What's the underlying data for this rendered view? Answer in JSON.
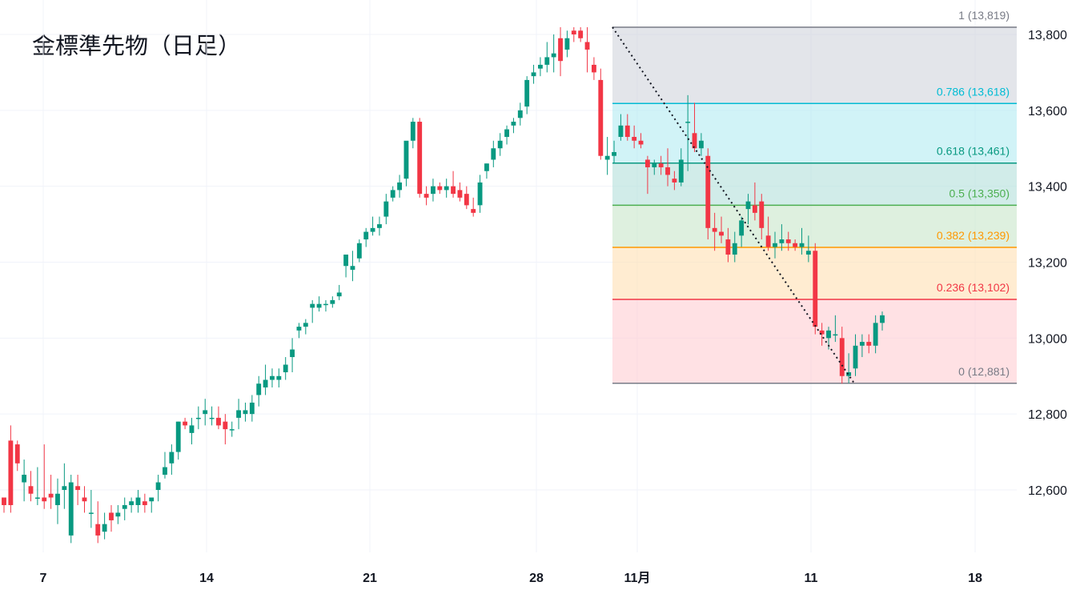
{
  "chart_data": {
    "type": "candlestick",
    "title": "金標準先物（日足）",
    "y_ticks": [
      12600,
      12800,
      13000,
      13200,
      13400,
      13600,
      13800
    ],
    "y_tick_labels": [
      "12,600",
      "12,800",
      "13,000",
      "13,200",
      "13,400",
      "13,600",
      "13,800"
    ],
    "x_ticks": [
      {
        "label": "7",
        "index": 1,
        "bold": true
      },
      {
        "label": "14",
        "index": 6,
        "bold": true
      },
      {
        "label": "21",
        "index": 11,
        "bold": true
      },
      {
        "label": "28",
        "index": 16,
        "bold": true
      },
      {
        "label": "11月",
        "index": 18,
        "bold": true
      },
      {
        "label": "11",
        "index": 23,
        "bold": true
      },
      {
        "label": "18",
        "index": 28,
        "bold": true
      }
    ],
    "candles_ohlc": [
      [
        12580,
        12580,
        12540,
        12560
      ],
      [
        12730,
        12770,
        12540,
        12560
      ],
      [
        12720,
        12730,
        12650,
        12670
      ],
      [
        12620,
        12680,
        12570,
        12640
      ],
      [
        12610,
        12650,
        12570,
        12590
      ],
      [
        12580,
        12660,
        12560,
        12580
      ],
      [
        12580,
        12720,
        12550,
        12570
      ],
      [
        12590,
        12640,
        12550,
        12580
      ],
      [
        12560,
        12630,
        12510,
        12590
      ],
      [
        12600,
        12670,
        12550,
        12610
      ],
      [
        12480,
        12640,
        12460,
        12620
      ],
      [
        12610,
        12640,
        12560,
        12600
      ],
      [
        12580,
        12610,
        12540,
        12570
      ],
      [
        12540,
        12600,
        12500,
        12540
      ],
      [
        12510,
        12570,
        12460,
        12480
      ],
      [
        12490,
        12540,
        12470,
        12510
      ],
      [
        12540,
        12560,
        12490,
        12520
      ],
      [
        12530,
        12560,
        12510,
        12540
      ],
      [
        12550,
        12580,
        12520,
        12560
      ],
      [
        12560,
        12580,
        12540,
        12570
      ],
      [
        12560,
        12600,
        12540,
        12580
      ],
      [
        12570,
        12590,
        12540,
        12560
      ],
      [
        12570,
        12580,
        12540,
        12580
      ],
      [
        12600,
        12640,
        12570,
        12620
      ],
      [
        12640,
        12700,
        12630,
        12660
      ],
      [
        12670,
        12720,
        12640,
        12700
      ],
      [
        12700,
        12780,
        12680,
        12780
      ],
      [
        12780,
        12790,
        12760,
        12770
      ],
      [
        12750,
        12790,
        12720,
        12770
      ],
      [
        12790,
        12820,
        12760,
        12790
      ],
      [
        12800,
        12840,
        12770,
        12810
      ],
      [
        12790,
        12820,
        12770,
        12790
      ],
      [
        12790,
        12820,
        12760,
        12770
      ],
      [
        12780,
        12800,
        12720,
        12760
      ],
      [
        12760,
        12780,
        12740,
        12760
      ],
      [
        12790,
        12840,
        12760,
        12810
      ],
      [
        12800,
        12830,
        12780,
        12810
      ],
      [
        12800,
        12850,
        12780,
        12830
      ],
      [
        12850,
        12900,
        12820,
        12880
      ],
      [
        12870,
        12930,
        12850,
        12890
      ],
      [
        12890,
        12920,
        12870,
        12900
      ],
      [
        12890,
        12920,
        12870,
        12900
      ],
      [
        12910,
        12950,
        12890,
        12930
      ],
      [
        12950,
        13000,
        12910,
        12970
      ],
      [
        13020,
        13040,
        13000,
        13030
      ],
      [
        13030,
        13050,
        13010,
        13040
      ],
      [
        13080,
        13100,
        13040,
        13090
      ],
      [
        13080,
        13110,
        13070,
        13090
      ],
      [
        13090,
        13100,
        13070,
        13090
      ],
      [
        13090,
        13110,
        13080,
        13100
      ],
      [
        13110,
        13140,
        13100,
        13120
      ],
      [
        13190,
        13220,
        13160,
        13220
      ],
      [
        13180,
        13230,
        13150,
        13190
      ],
      [
        13210,
        13260,
        13200,
        13250
      ],
      [
        13260,
        13290,
        13240,
        13280
      ],
      [
        13280,
        13320,
        13270,
        13290
      ],
      [
        13290,
        13320,
        13270,
        13300
      ],
      [
        13320,
        13380,
        13300,
        13360
      ],
      [
        13370,
        13400,
        13360,
        13390
      ],
      [
        13390,
        13430,
        13370,
        13410
      ],
      [
        13420,
        13480,
        13400,
        13520
      ],
      [
        13520,
        13580,
        13500,
        13570
      ],
      [
        13570,
        13580,
        13370,
        13380
      ],
      [
        13380,
        13400,
        13350,
        13370
      ],
      [
        13380,
        13420,
        13360,
        13400
      ],
      [
        13400,
        13410,
        13380,
        13390
      ],
      [
        13390,
        13420,
        13370,
        13400
      ],
      [
        13400,
        13440,
        13370,
        13380
      ],
      [
        13390,
        13410,
        13360,
        13370
      ],
      [
        13380,
        13400,
        13340,
        13350
      ],
      [
        13340,
        13370,
        13320,
        13330
      ],
      [
        13350,
        13430,
        13330,
        13410
      ],
      [
        13440,
        13460,
        13420,
        13460
      ],
      [
        13470,
        13520,
        13450,
        13500
      ],
      [
        13500,
        13540,
        13480,
        13520
      ],
      [
        13530,
        13560,
        13510,
        13550
      ],
      [
        13560,
        13580,
        13540,
        13570
      ],
      [
        13580,
        13620,
        13560,
        13600
      ],
      [
        13610,
        13690,
        13590,
        13680
      ],
      [
        13690,
        13720,
        13670,
        13700
      ],
      [
        13710,
        13740,
        13690,
        13720
      ],
      [
        13720,
        13780,
        13700,
        13740
      ],
      [
        13740,
        13800,
        13700,
        13750
      ],
      [
        13790,
        13819,
        13690,
        13730
      ],
      [
        13760,
        13810,
        13740,
        13790
      ],
      [
        13810,
        13819,
        13780,
        13800
      ],
      [
        13810,
        13819,
        13780,
        13790
      ],
      [
        13780,
        13819,
        13700,
        13760
      ],
      [
        13720,
        13740,
        13680,
        13700
      ],
      [
        13680,
        13710,
        13470,
        13480
      ],
      [
        13470,
        13530,
        13430,
        13480
      ],
      [
        13480,
        13520,
        13460,
        13490
      ],
      [
        13530,
        13590,
        13520,
        13560
      ],
      [
        13560,
        13590,
        13520,
        13530
      ],
      [
        13530,
        13560,
        13500,
        13520
      ],
      [
        13520,
        13540,
        13500,
        13510
      ],
      [
        13470,
        13480,
        13380,
        13450
      ],
      [
        13450,
        13470,
        13430,
        13460
      ],
      [
        13460,
        13480,
        13430,
        13450
      ],
      [
        13450,
        13500,
        13400,
        13430
      ],
      [
        13420,
        13440,
        13390,
        13410
      ],
      [
        13410,
        13500,
        13400,
        13470
      ],
      [
        13570,
        13640,
        13440,
        13570
      ],
      [
        13540,
        13620,
        13490,
        13500
      ],
      [
        13500,
        13540,
        13480,
        13520
      ],
      [
        13480,
        13500,
        13260,
        13290
      ],
      [
        13290,
        13330,
        13230,
        13280
      ],
      [
        13280,
        13320,
        13250,
        13270
      ],
      [
        13260,
        13290,
        13200,
        13220
      ],
      [
        13220,
        13280,
        13200,
        13250
      ],
      [
        13270,
        13320,
        13240,
        13310
      ],
      [
        13340,
        13380,
        13300,
        13360
      ],
      [
        13350,
        13410,
        13310,
        13330
      ],
      [
        13360,
        13380,
        13260,
        13290
      ],
      [
        13270,
        13320,
        13230,
        13240
      ],
      [
        13240,
        13280,
        13210,
        13250
      ],
      [
        13250,
        13300,
        13230,
        13260
      ],
      [
        13260,
        13280,
        13230,
        13250
      ],
      [
        13250,
        13260,
        13230,
        13240
      ],
      [
        13240,
        13290,
        13220,
        13250
      ],
      [
        13220,
        13270,
        13200,
        13230
      ],
      [
        13230,
        13250,
        13010,
        13030
      ],
      [
        13020,
        13040,
        12980,
        13010
      ],
      [
        13000,
        13030,
        12970,
        13020
      ],
      [
        13010,
        13060,
        12990,
        13010
      ],
      [
        13000,
        13030,
        12880,
        12900
      ],
      [
        12900,
        12960,
        12881,
        12910
      ],
      [
        12920,
        13010,
        12900,
        12980
      ],
      [
        12980,
        13010,
        12950,
        12990
      ],
      [
        12990,
        13010,
        12960,
        12980
      ],
      [
        12980,
        13060,
        12960,
        13040
      ],
      [
        13040,
        13070,
        13020,
        13060
      ]
    ],
    "fibonacci": [
      {
        "ratio": "1",
        "label": "1 (13,819)",
        "value": 13819,
        "color": "#787b86",
        "fill": "#d1d4dc"
      },
      {
        "ratio": "0.786",
        "label": "0.786 (13,618)",
        "value": 13618,
        "color": "#00bcd4",
        "fill": "#b2ebf2"
      },
      {
        "ratio": "0.618",
        "label": "0.618 (13,461)",
        "value": 13461,
        "color": "#089981",
        "fill": "#b2dfdb"
      },
      {
        "ratio": "0.5",
        "label": "0.5 (13,350)",
        "value": 13350,
        "color": "#4caf50",
        "fill": "#c8e6c9"
      },
      {
        "ratio": "0.382",
        "label": "0.382 (13,239)",
        "value": 13239,
        "color": "#ff9800",
        "fill": "#ffe0b2"
      },
      {
        "ratio": "0.236",
        "label": "0.236 (13,102)",
        "value": 13102,
        "color": "#f23645",
        "fill": "#ffcdd2"
      },
      {
        "ratio": "0",
        "label": "0 (12,881)",
        "value": 12881,
        "color": "#787b86",
        "fill": ""
      }
    ],
    "trendline": {
      "from": 13819,
      "to": 12881
    },
    "colors": {
      "up": "#089981",
      "down": "#f23645",
      "grid": "#f0f3fa",
      "text": "#131722"
    }
  }
}
